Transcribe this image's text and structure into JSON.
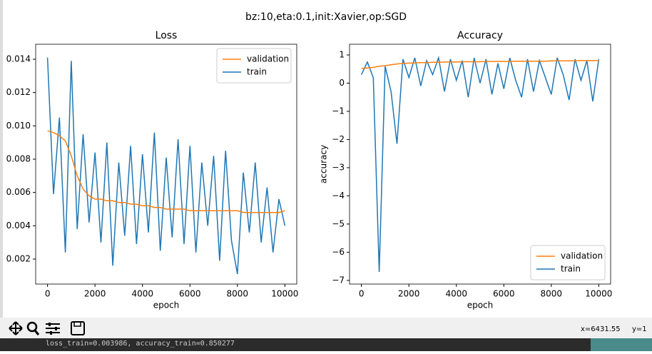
{
  "suptitle": "bz:10,eta:0.1,init:Xavier,op:SGD",
  "chart_data": [
    {
      "type": "line",
      "title": "Loss",
      "xlabel": "epoch",
      "legend": "upper right",
      "x": [
        0,
        250,
        500,
        750,
        1000,
        1250,
        1500,
        1750,
        2000,
        2250,
        2500,
        2750,
        3000,
        3250,
        3500,
        3750,
        4000,
        4250,
        4500,
        4750,
        5000,
        5250,
        5500,
        5750,
        6000,
        6250,
        6500,
        6750,
        7000,
        7250,
        7500,
        7750,
        8000,
        8250,
        8500,
        8750,
        9000,
        9250,
        9500,
        9750,
        10000
      ],
      "series": [
        {
          "name": "validation",
          "color": "#ff7f0e",
          "values": [
            0.0097,
            0.0096,
            0.0094,
            0.0091,
            0.0082,
            0.007,
            0.0062,
            0.0058,
            0.0056,
            0.0056,
            0.0055,
            0.0055,
            0.0054,
            0.0054,
            0.0053,
            0.0053,
            0.0052,
            0.0052,
            0.0051,
            0.0051,
            0.005,
            0.005,
            0.005,
            0.005,
            0.0049,
            0.0049,
            0.0049,
            0.0049,
            0.0049,
            0.0049,
            0.0049,
            0.0049,
            0.0049,
            0.0048,
            0.0048,
            0.0048,
            0.0048,
            0.0048,
            0.0048,
            0.0048,
            0.0049
          ]
        },
        {
          "name": "train",
          "color": "#1f77b4",
          "values": [
            0.0141,
            0.0059,
            0.0105,
            0.0024,
            0.0139,
            0.0038,
            0.0095,
            0.0042,
            0.0084,
            0.003,
            0.009,
            0.0016,
            0.0078,
            0.0034,
            0.0088,
            0.0029,
            0.0083,
            0.0036,
            0.0096,
            0.0025,
            0.0081,
            0.0033,
            0.0092,
            0.0029,
            0.0088,
            0.0024,
            0.0078,
            0.004,
            0.0082,
            0.0019,
            0.0085,
            0.0031,
            0.0011,
            0.0072,
            0.0036,
            0.0078,
            0.003,
            0.0063,
            0.0024,
            0.0056,
            0.004
          ]
        }
      ],
      "xlim": [
        -500,
        10500
      ],
      "xticks": [
        0,
        2000,
        4000,
        6000,
        8000,
        10000
      ],
      "ylim": [
        0.0005,
        0.0149
      ],
      "yticks": [
        0.002,
        0.004,
        0.006,
        0.008,
        {
          "value": 0.01,
          "label": "0.010"
        },
        0.012,
        0.014
      ]
    },
    {
      "type": "line",
      "title": "Accuracy",
      "xlabel": "epoch",
      "ylabel": "accuracy",
      "legend": "lower right",
      "x": [
        0,
        250,
        500,
        750,
        1000,
        1250,
        1500,
        1750,
        2000,
        2250,
        2500,
        2750,
        3000,
        3250,
        3500,
        3750,
        4000,
        4250,
        4500,
        4750,
        5000,
        5250,
        5500,
        5750,
        6000,
        6250,
        6500,
        6750,
        7000,
        7250,
        7500,
        7750,
        8000,
        8250,
        8500,
        8750,
        9000,
        9250,
        9500,
        9750,
        10000
      ],
      "series": [
        {
          "name": "validation",
          "color": "#ff7f0e",
          "values": [
            0.52,
            0.54,
            0.56,
            0.6,
            0.62,
            0.65,
            0.68,
            0.7,
            0.71,
            0.72,
            0.73,
            0.73,
            0.74,
            0.74,
            0.75,
            0.75,
            0.75,
            0.76,
            0.76,
            0.76,
            0.76,
            0.77,
            0.77,
            0.77,
            0.77,
            0.77,
            0.78,
            0.78,
            0.78,
            0.78,
            0.78,
            0.78,
            0.79,
            0.79,
            0.79,
            0.79,
            0.79,
            0.8,
            0.8,
            0.8,
            0.8
          ]
        },
        {
          "name": "train",
          "color": "#1f77b4",
          "values": [
            0.3,
            0.75,
            0.2,
            -6.7,
            0.6,
            -0.3,
            -2.15,
            0.85,
            0.2,
            0.9,
            -0.1,
            0.8,
            0.3,
            0.9,
            -0.3,
            0.85,
            0.1,
            0.8,
            -0.5,
            0.9,
            0.0,
            0.85,
            -0.4,
            0.7,
            -0.2,
            0.9,
            0.1,
            -0.5,
            0.85,
            -0.3,
            0.8,
            0.2,
            -0.4,
            0.9,
            0.3,
            -0.6,
            0.85,
            0.1,
            0.8,
            -0.65,
            0.85
          ]
        }
      ],
      "xlim": [
        -500,
        10500
      ],
      "xticks": [
        0,
        2000,
        4000,
        6000,
        8000,
        10000
      ],
      "ylim": [
        -7.13,
        1.38
      ],
      "yticks": [
        {
          "value": -7,
          "label": "−7"
        },
        {
          "value": -6,
          "label": "−6"
        },
        {
          "value": -5,
          "label": "−5"
        },
        {
          "value": -4,
          "label": "−4"
        },
        {
          "value": -3,
          "label": "−3"
        },
        {
          "value": -2,
          "label": "−2"
        },
        {
          "value": -1,
          "label": "−1"
        },
        0,
        1
      ]
    }
  ],
  "status": {
    "x": "x=6431.55",
    "y": "y=1"
  },
  "console": "loss_train=0.003986, accuracy_train=0.850277"
}
